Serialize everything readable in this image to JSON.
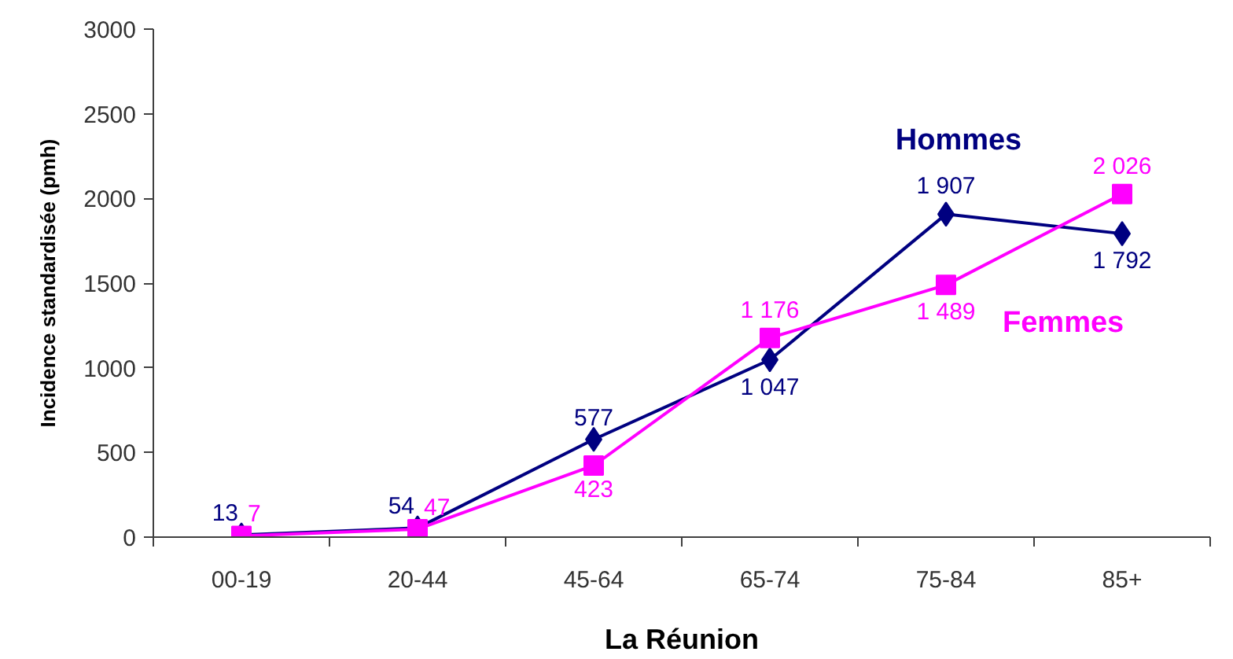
{
  "chart_data": {
    "type": "line",
    "xlabel": "La Réunion",
    "ylabel": "Incidence standardisée (pmh)",
    "categories": [
      "00-19",
      "20-44",
      "45-64",
      "65-74",
      "75-84",
      "85+"
    ],
    "series": [
      {
        "name": "Hommes",
        "color": "#000080",
        "marker": "diamond",
        "values": [
          13,
          54,
          577,
          1047,
          1907,
          1792
        ],
        "value_labels": [
          "13",
          "54",
          "577",
          "1 047",
          "1 907",
          "1 792"
        ]
      },
      {
        "name": "Femmes",
        "color": "#ff00ff",
        "marker": "square",
        "values": [
          7,
          47,
          423,
          1176,
          1489,
          2026
        ],
        "value_labels": [
          "7",
          "47",
          "423",
          "1 176",
          "1 489",
          "2 026"
        ]
      }
    ],
    "ylim": [
      0,
      3000
    ],
    "yticks": [
      0,
      500,
      1000,
      1500,
      2000,
      2500,
      3000
    ],
    "grid": false,
    "legend": false,
    "line_style": "solid"
  }
}
